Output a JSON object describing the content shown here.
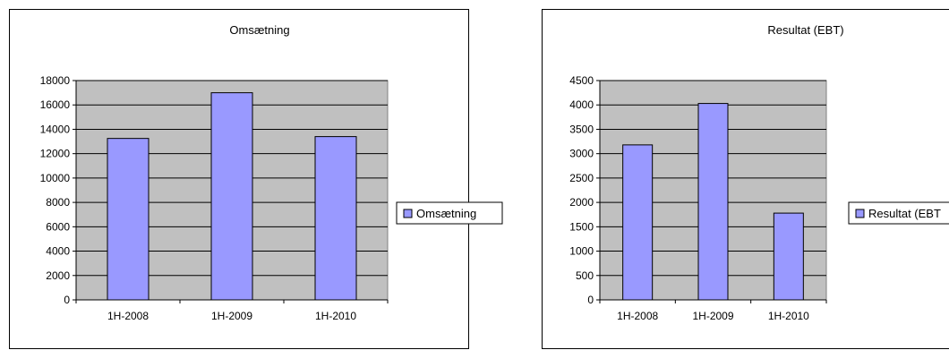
{
  "chart_data": [
    {
      "type": "bar",
      "title": "Omsætning",
      "categories": [
        "1H-2008",
        "1H-2009",
        "1H-2010"
      ],
      "series": [
        {
          "name": "Omsætning",
          "values": [
            13250,
            17000,
            13400
          ]
        }
      ],
      "ylim": [
        0,
        18000
      ],
      "yticks": [
        "0",
        "2000",
        "4000",
        "6000",
        "8000",
        "10000",
        "12000",
        "14000",
        "16000",
        "18000"
      ],
      "xlabel": "",
      "ylabel": "",
      "grid": true,
      "legend": "right",
      "colors": {
        "bar": "#9999ff",
        "plot_bg": "#c0c0c0",
        "grid": "#000000"
      }
    },
    {
      "type": "bar",
      "title": "Resultat (EBT)",
      "categories": [
        "1H-2008",
        "1H-2009",
        "1H-2010"
      ],
      "series": [
        {
          "name": "Resultat (EBT",
          "values": [
            3180,
            4030,
            1780
          ]
        }
      ],
      "ylim": [
        0,
        4500
      ],
      "yticks": [
        "0",
        "500",
        "1000",
        "1500",
        "2000",
        "2500",
        "3000",
        "3500",
        "4000",
        "4500"
      ],
      "xlabel": "",
      "ylabel": "",
      "grid": true,
      "legend": "right",
      "colors": {
        "bar": "#9999ff",
        "plot_bg": "#c0c0c0",
        "grid": "#000000"
      }
    }
  ]
}
